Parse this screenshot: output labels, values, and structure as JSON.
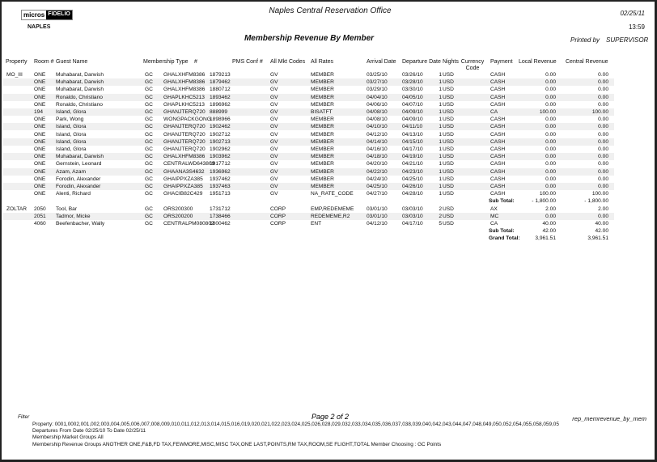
{
  "header": {
    "logo_left": "micros",
    "logo_right": "FIDELIO",
    "office": "NAPLES",
    "center_title": "Naples Central Reservation Office",
    "report_title": "Membership Revenue By Member",
    "date": "02/25/11",
    "time": "13:59",
    "printed_by_label": "Printed by",
    "printed_by": "SUPERVISOR"
  },
  "columns": {
    "property": "Property",
    "room": "Room #",
    "guest": "Guest Name",
    "mtype": "Membership Type",
    "num": "#",
    "pms": "PMS Conf #",
    "mkt": "All Mkt Codes",
    "rates": "All Rates",
    "arrival": "Arrival Date",
    "departure": "Departure Date",
    "nights": "Nights",
    "currency": "Currency Code",
    "payment": "Payment",
    "local": "Local Revenue",
    "central": "Central Revenue"
  },
  "rows": [
    [
      "MO_III",
      "ONE",
      "Muhabarat, Darwish",
      "GC",
      "GHALXHFM8386",
      "1879213",
      "GV",
      "MEMBER",
      "03/25/10",
      "03/26/10",
      "1",
      "USD",
      "CASH",
      "0.00",
      "0.00"
    ],
    [
      "",
      "ONE",
      "Muhabarat, Darwish",
      "GC",
      "GHALXHFM8386",
      "1879462",
      "GV",
      "MEMBER",
      "03/27/10",
      "03/28/10",
      "1",
      "USD",
      "CASH",
      "0.00",
      "0.00"
    ],
    [
      "",
      "ONE",
      "Muhabarat, Darwish",
      "GC",
      "GHALXHFM8386",
      "1880712",
      "GV",
      "MEMBER",
      "03/29/10",
      "03/30/10",
      "1",
      "USD",
      "CASH",
      "0.00",
      "0.00"
    ],
    [
      "",
      "ONE",
      "Ronaldo, Christiano",
      "GC",
      "GHAPLKHC5213",
      "1893462",
      "GV",
      "MEMBER",
      "04/04/10",
      "04/05/10",
      "1",
      "USD",
      "CASH",
      "0.00",
      "0.00"
    ],
    [
      "",
      "ONE",
      "Ronaldo, Christiano",
      "GC",
      "GHAPLKHC5213",
      "1896962",
      "GV",
      "MEMBER",
      "04/06/10",
      "04/07/10",
      "1",
      "USD",
      "CASH",
      "0.00",
      "0.00"
    ],
    [
      "",
      "194",
      "Island, Glora",
      "GC",
      "GHANJTERQ720",
      "888999",
      "GV",
      "BISATFT",
      "04/08/10",
      "04/09/10",
      "1",
      "USD",
      "CA",
      "100.00",
      "100.00"
    ],
    [
      "",
      "ONE",
      "Park, Wong",
      "GC",
      "WONGPACKGONG",
      "1898966",
      "GV",
      "MEMBER",
      "04/08/10",
      "04/09/10",
      "1",
      "USD",
      "CASH",
      "0.00",
      "0.00"
    ],
    [
      "",
      "ONE",
      "Island, Glora",
      "GC",
      "GHANJTERQ720",
      "1902462",
      "GV",
      "MEMBER",
      "04/10/10",
      "04/11/10",
      "1",
      "USD",
      "CASH",
      "0.00",
      "0.00"
    ],
    [
      "",
      "ONE",
      "Island, Glora",
      "GC",
      "GHANJTERQ720",
      "1902712",
      "GV",
      "MEMBER",
      "04/12/10",
      "04/13/10",
      "1",
      "USD",
      "CASH",
      "0.00",
      "0.00"
    ],
    [
      "",
      "ONE",
      "Island, Glora",
      "GC",
      "GHANJTERQ720",
      "1902713",
      "GV",
      "MEMBER",
      "04/14/10",
      "04/15/10",
      "1",
      "USD",
      "CASH",
      "0.00",
      "0.00"
    ],
    [
      "",
      "ONE",
      "Island, Glora",
      "GC",
      "GHANJTERQ720",
      "1902962",
      "GV",
      "MEMBER",
      "04/16/10",
      "04/17/10",
      "1",
      "USD",
      "CASH",
      "0.00",
      "0.00"
    ],
    [
      "",
      "ONE",
      "Muhabarat, Darwish",
      "GC",
      "GHALXHFM8386",
      "1903962",
      "GV",
      "MEMBER",
      "04/18/10",
      "04/19/10",
      "1",
      "USD",
      "CASH",
      "0.00",
      "0.00"
    ],
    [
      "",
      "ONE",
      "Gernstein, Leonard",
      "GC",
      "CENTRALWD643809",
      "1917712",
      "GV",
      "MEMBER",
      "04/20/10",
      "04/21/10",
      "1",
      "USD",
      "CASH",
      "0.00",
      "0.00"
    ],
    [
      "",
      "ONE",
      "Azam, Azam",
      "GC",
      "GHAANA3S4632",
      "1936962",
      "GV",
      "MEMBER",
      "04/22/10",
      "04/23/10",
      "1",
      "USD",
      "CASH",
      "0.00",
      "0.00"
    ],
    [
      "",
      "ONE",
      "Forodin, Alexander",
      "GC",
      "GHAIPPXZA385",
      "1937462",
      "GV",
      "MEMBER",
      "04/24/10",
      "04/25/10",
      "1",
      "USD",
      "CASH",
      "0.00",
      "0.00"
    ],
    [
      "",
      "ONE",
      "Forodin, Alexander",
      "GC",
      "GHAIPPXZA385",
      "1937463",
      "GV",
      "MEMBER",
      "04/25/10",
      "04/26/10",
      "1",
      "USD",
      "CASH",
      "0.00",
      "0.00"
    ],
    [
      "",
      "ONE",
      "Alenti, Richard",
      "GC",
      "GHACIB82C429",
      "1951713",
      "GV",
      "NA_RATE_CODE",
      "04/27/10",
      "04/28/10",
      "1",
      "USD",
      "CASH",
      "100.00",
      "100.00"
    ],
    {
      "label": "Sub Total:",
      "local": "- 1,800.00",
      "central": "- 1,800.00"
    },
    [
      "ZOLTAR",
      "2050",
      "Tool, Bar",
      "GC",
      "ORS200300",
      "1731712",
      "CORP",
      "EMP,REDEMEME",
      "03/01/10",
      "03/03/10",
      "2",
      "USD",
      "AX",
      "2.00",
      "2.00"
    ],
    [
      "",
      "2051",
      "Tadmor, Micke",
      "GC",
      "ORS200200",
      "1738466",
      "CORP",
      "REDEMEME,R2",
      "03/01/10",
      "03/03/10",
      "2",
      "USD",
      "MC",
      "0.00",
      "0.00"
    ],
    [
      "",
      "4060",
      "Beefenbacher, Wally",
      "GC",
      "CENTRALPM080802",
      "1800462",
      "CORP",
      "ENT",
      "04/12/10",
      "04/17/10",
      "5",
      "USD",
      "CA",
      "40.00",
      "40.00"
    ],
    {
      "label": "Sub Total:",
      "local": "42.00",
      "central": "42.00"
    },
    {
      "label": "Grand Total:",
      "local": "3,961.51",
      "central": "3,961.51"
    }
  ],
  "footer": {
    "filter_label": "Filter",
    "page": "Page 2 of 2",
    "report_id": "rep_memrevenue_by_mem",
    "property": "Property:  0001,0002,001,002,003,004,005,006,007,008,009,010,011,012,013,014,015,016,019,020,021,022,023,024,025,026,028,029,032,033,034,035,036,037,038,039,040,042,043,044,047,048,049,050,052,054,055,058,059,05",
    "departures": "Departures From Date 02/25/10   To Date 02/25/11",
    "market_groups": "Membership Market Groups All",
    "revenue_groups": "Membership Revenue Groups ANOTHER ONE,F&B,FD TAX,FEWMORE,MISC,MISC TAX,ONE LAST,POINTS,RM TAX,ROOM,SE FLIGHT,TOTAL    Member Choosing : GC Points"
  }
}
